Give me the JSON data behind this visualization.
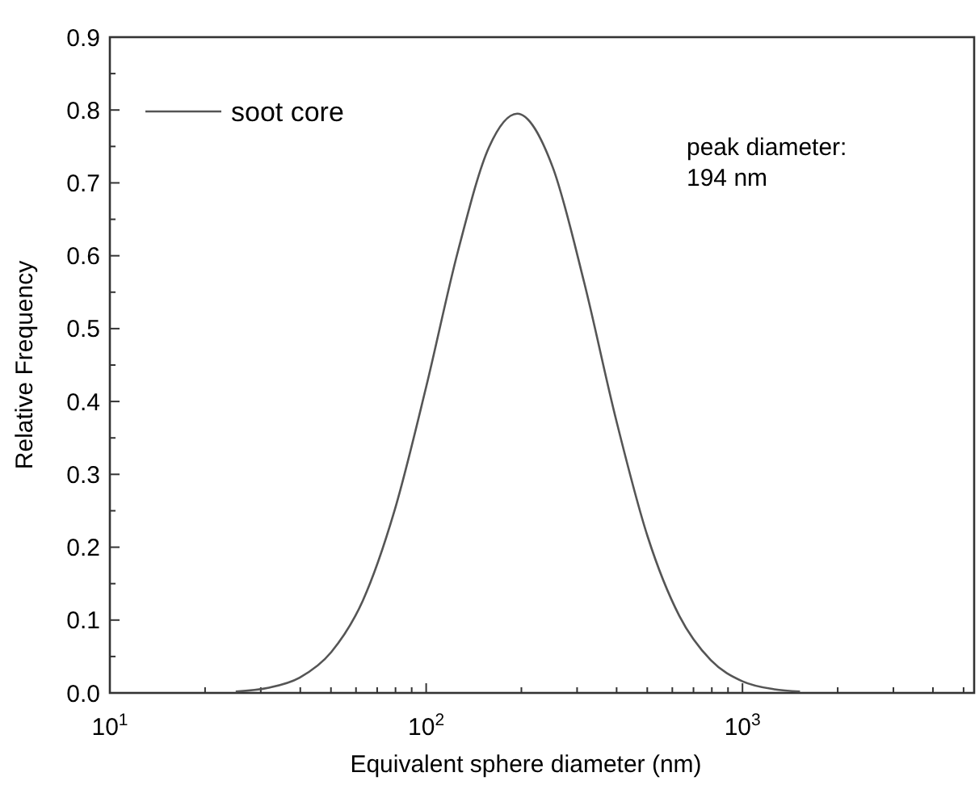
{
  "chart_data": {
    "type": "line",
    "xlabel": "Equivalent sphere diameter (nm)",
    "ylabel": "Relative Frequency",
    "log": "x",
    "legend": "top left",
    "grid": false,
    "marker": "none",
    "line_style": "solid",
    "annotations": [
      "peak diameter:\n194 nm"
    ],
    "xlim": [
      10,
      5400
    ],
    "xticks": [
      {
        "value": 10,
        "label": "10$^{1}$"
      },
      {
        "value": 100,
        "label": "10$^{2}$"
      },
      {
        "value": 1000,
        "label": "10$^{3}$"
      }
    ],
    "ylim": [
      0,
      0.9
    ],
    "yticks": [
      {
        "value": 0,
        "label": "0.0"
      },
      0.1,
      0.2,
      0.3,
      0.4,
      0.5,
      0.6,
      0.7,
      0.8,
      0.9
    ],
    "series": [
      {
        "name": "soot core",
        "color": "#555555",
        "x": [
          25,
          31.6,
          39.8,
          50.1,
          63.1,
          79.4,
          100,
          126,
          158,
          194,
          251,
          316,
          398,
          501,
          631,
          794,
          1000,
          1260,
          1520
        ],
        "values": [
          0.002,
          0.007,
          0.021,
          0.056,
          0.127,
          0.25,
          0.42,
          0.606,
          0.749,
          0.795,
          0.722,
          0.563,
          0.376,
          0.215,
          0.106,
          0.045,
          0.016,
          0.005,
          0.002
        ]
      }
    ]
  }
}
